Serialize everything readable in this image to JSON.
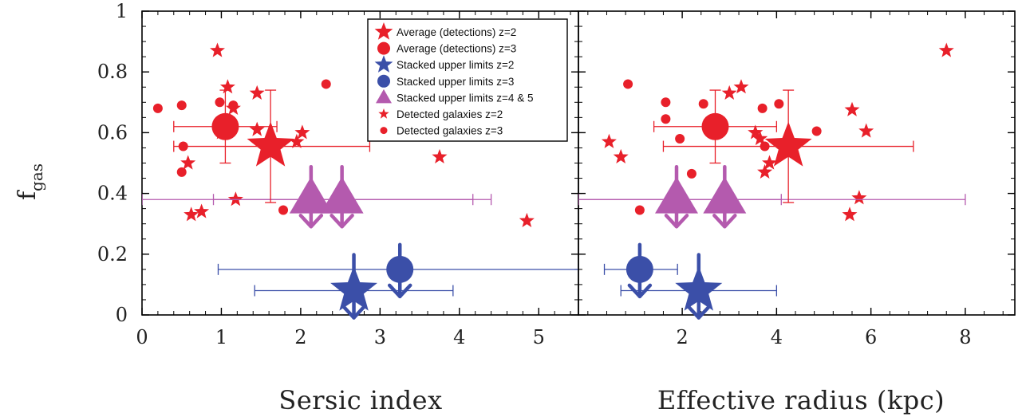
{
  "colors": {
    "red": "#e8202a",
    "blue": "#3b4fa8",
    "purple": "#b45aae",
    "axis": "#000000"
  },
  "ylabel": {
    "main": "f",
    "sub": "gas"
  },
  "legend": {
    "placement": "top-right of left panel",
    "items": [
      {
        "label": "Average (detections) z=2",
        "marker": "star-large",
        "color": "red"
      },
      {
        "label": "Average (detections) z=3",
        "marker": "circle-large",
        "color": "red"
      },
      {
        "label": "Stacked upper limits z=2",
        "marker": "star-large",
        "color": "blue"
      },
      {
        "label": "Stacked upper limits z=3",
        "marker": "circle-large",
        "color": "blue"
      },
      {
        "label": "Stacked upper limits z=4 & 5",
        "marker": "triangle-large",
        "color": "purple"
      },
      {
        "label": "Detected galaxies z=2",
        "marker": "star-small",
        "color": "red"
      },
      {
        "label": "Detected galaxies z=3",
        "marker": "circle-small",
        "color": "red"
      }
    ]
  },
  "chart_data": [
    {
      "type": "scatter",
      "xlabel": "Sersic index",
      "ylabel": "f_gas",
      "xlim": [
        0,
        5.5
      ],
      "ylim": [
        0,
        1
      ],
      "xticks": [
        "0",
        "1",
        "2",
        "3",
        "4",
        "5"
      ],
      "yticks": [
        "0",
        "0.2",
        "0.4",
        "0.6",
        "0.8",
        "1"
      ],
      "series": [
        {
          "name": "Average (detections) z=2",
          "marker": "star-large",
          "color": "red",
          "points": [
            {
              "x": 1.62,
              "y": 0.555,
              "xlo": 0.4,
              "xhi": 2.87,
              "ylo": 0.37,
              "yhi": 0.74
            }
          ]
        },
        {
          "name": "Average (detections) z=3",
          "marker": "circle-large",
          "color": "red",
          "points": [
            {
              "x": 1.05,
              "y": 0.62,
              "xlo": 0.4,
              "xhi": 1.7,
              "ylo": 0.5,
              "yhi": 0.74
            }
          ]
        },
        {
          "name": "Stacked upper limits z=2",
          "marker": "star-large",
          "color": "blue",
          "upper_limit": true,
          "points": [
            {
              "x": 2.67,
              "y": 0.08,
              "xlo": 1.42,
              "xhi": 3.92
            }
          ]
        },
        {
          "name": "Stacked upper limits z=3",
          "marker": "circle-large",
          "color": "blue",
          "upper_limit": true,
          "points": [
            {
              "x": 3.25,
              "y": 0.15,
              "xlo": 0.96,
              "xhi": 5.5
            }
          ]
        },
        {
          "name": "Stacked upper limits z=4 & 5",
          "marker": "triangle-large",
          "color": "purple",
          "upper_limit": true,
          "points": [
            {
              "x": 2.13,
              "y": 0.38,
              "xlo": 0.0,
              "xhi": 4.17
            },
            {
              "x": 2.52,
              "y": 0.38,
              "xlo": 0.9,
              "xhi": 4.4
            }
          ]
        },
        {
          "name": "Detected galaxies z=2",
          "marker": "star-small",
          "color": "red",
          "points": [
            {
              "x": 0.95,
              "y": 0.87
            },
            {
              "x": 1.08,
              "y": 0.75
            },
            {
              "x": 1.45,
              "y": 0.73
            },
            {
              "x": 1.15,
              "y": 0.68
            },
            {
              "x": 1.45,
              "y": 0.61
            },
            {
              "x": 2.02,
              "y": 0.6
            },
            {
              "x": 1.95,
              "y": 0.57
            },
            {
              "x": 1.0,
              "y": 0.6
            },
            {
              "x": 0.58,
              "y": 0.5
            },
            {
              "x": 3.75,
              "y": 0.52
            },
            {
              "x": 1.18,
              "y": 0.38
            },
            {
              "x": 0.75,
              "y": 0.34
            },
            {
              "x": 0.62,
              "y": 0.33
            },
            {
              "x": 4.85,
              "y": 0.31
            }
          ]
        },
        {
          "name": "Detected galaxies z=3",
          "marker": "circle-small",
          "color": "red",
          "points": [
            {
              "x": 0.2,
              "y": 0.68
            },
            {
              "x": 0.5,
              "y": 0.69
            },
            {
              "x": 0.98,
              "y": 0.7
            },
            {
              "x": 1.15,
              "y": 0.69
            },
            {
              "x": 2.32,
              "y": 0.76
            },
            {
              "x": 1.1,
              "y": 0.64
            },
            {
              "x": 0.52,
              "y": 0.555
            },
            {
              "x": 0.5,
              "y": 0.47
            },
            {
              "x": 1.78,
              "y": 0.345
            }
          ]
        }
      ]
    },
    {
      "type": "scatter",
      "xlabel": "Effective radius (kpc)",
      "ylabel": "",
      "xlim": [
        -0.2,
        9.05
      ],
      "ylim": [
        0,
        1
      ],
      "xticks": [
        "2",
        "4",
        "6",
        "8"
      ],
      "series": [
        {
          "name": "Average (detections) z=2",
          "marker": "star-large",
          "color": "red",
          "points": [
            {
              "x": 4.25,
              "y": 0.555,
              "xlo": 1.6,
              "xhi": 6.9,
              "ylo": 0.37,
              "yhi": 0.74
            }
          ]
        },
        {
          "name": "Average (detections) z=3",
          "marker": "circle-large",
          "color": "red",
          "points": [
            {
              "x": 2.7,
              "y": 0.62,
              "xlo": 1.4,
              "xhi": 4.0,
              "ylo": 0.5,
              "yhi": 0.74
            }
          ]
        },
        {
          "name": "Stacked upper limits z=2",
          "marker": "star-large",
          "color": "blue",
          "upper_limit": true,
          "points": [
            {
              "x": 2.35,
              "y": 0.08,
              "xlo": 0.7,
              "xhi": 4.0
            }
          ]
        },
        {
          "name": "Stacked upper limits z=3",
          "marker": "circle-large",
          "color": "blue",
          "upper_limit": true,
          "points": [
            {
              "x": 1.1,
              "y": 0.15,
              "xlo": 0.35,
              "xhi": 1.9
            }
          ]
        },
        {
          "name": "Stacked upper limits z=4 & 5",
          "marker": "triangle-large",
          "color": "purple",
          "upper_limit": true,
          "points": [
            {
              "x": 1.88,
              "y": 0.38,
              "xlo": -0.2,
              "xhi": 4.1
            },
            {
              "x": 2.9,
              "y": 0.38,
              "xlo": -0.2,
              "xhi": 8.0
            }
          ]
        },
        {
          "name": "Detected galaxies z=2",
          "marker": "star-small",
          "color": "red",
          "points": [
            {
              "x": 7.6,
              "y": 0.87
            },
            {
              "x": 3.25,
              "y": 0.75
            },
            {
              "x": 3.0,
              "y": 0.73
            },
            {
              "x": 5.6,
              "y": 0.675
            },
            {
              "x": 5.9,
              "y": 0.605
            },
            {
              "x": 3.55,
              "y": 0.6
            },
            {
              "x": 3.65,
              "y": 0.58
            },
            {
              "x": 0.45,
              "y": 0.57
            },
            {
              "x": 0.7,
              "y": 0.52
            },
            {
              "x": 3.85,
              "y": 0.5
            },
            {
              "x": 3.75,
              "y": 0.47
            },
            {
              "x": 5.75,
              "y": 0.385
            },
            {
              "x": 5.55,
              "y": 0.33
            }
          ]
        },
        {
          "name": "Detected galaxies z=3",
          "marker": "circle-small",
          "color": "red",
          "points": [
            {
              "x": 0.85,
              "y": 0.76
            },
            {
              "x": 1.65,
              "y": 0.7
            },
            {
              "x": 2.45,
              "y": 0.695
            },
            {
              "x": 4.05,
              "y": 0.695
            },
            {
              "x": 3.7,
              "y": 0.68
            },
            {
              "x": 1.65,
              "y": 0.645
            },
            {
              "x": 4.85,
              "y": 0.605
            },
            {
              "x": 1.95,
              "y": 0.58
            },
            {
              "x": 3.75,
              "y": 0.555
            },
            {
              "x": 2.2,
              "y": 0.465
            },
            {
              "x": 1.1,
              "y": 0.345
            }
          ]
        }
      ]
    }
  ]
}
